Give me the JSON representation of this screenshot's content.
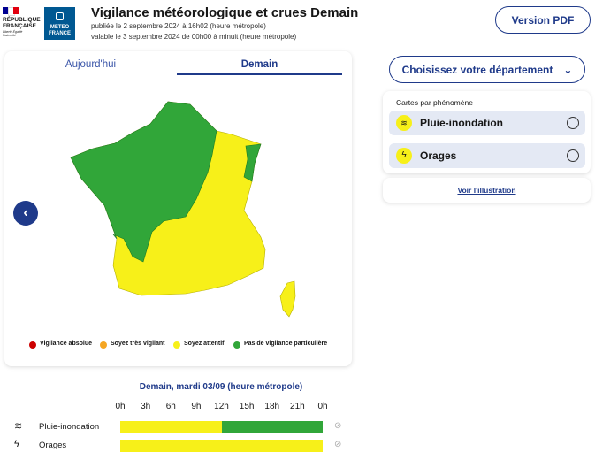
{
  "header": {
    "republique": "RÉPUBLIQUE FRANÇAISE",
    "devise": "Liberté Égalité Fraternité",
    "meteo": "METEO FRANCE",
    "title": "Vigilance météorologique et crues Demain",
    "published": "publiée le 2 septembre 2024 à 16h02 (heure métropole)",
    "valid": "valable le 3 septembre 2024 de 00h00 à minuit (heure métropole)",
    "pdf_button": "Version PDF"
  },
  "tabs": [
    "Aujourd'hui",
    "Demain"
  ],
  "legend": [
    {
      "label": "Vigilance absolue",
      "color": "#cc0000"
    },
    {
      "label": "Soyez très vigilant",
      "color": "#f5a623"
    },
    {
      "label": "Soyez attentif",
      "color": "#f7f019"
    },
    {
      "label": "Pas de vigilance particulière",
      "color": "#31a639"
    }
  ],
  "sidebar": {
    "department_button": "Choisissez votre département",
    "phenomena_title": "Cartes par phénomène",
    "phenomena": [
      "Pluie-inondation",
      "Orages"
    ],
    "illustration_link": "Voir l'illustration"
  },
  "timeline": {
    "title": "Demain, mardi 03/09 (heure métropole)",
    "hours": [
      "0h",
      "3h",
      "6h",
      "9h",
      "12h",
      "15h",
      "18h",
      "21h",
      "0h"
    ],
    "range": [
      0,
      24
    ],
    "rows": [
      {
        "label": "Pluie-inondation",
        "segments": [
          {
            "start": 0,
            "end": 12,
            "color": "#f7f019"
          },
          {
            "start": 12,
            "end": 24,
            "color": "#31a639"
          }
        ]
      },
      {
        "label": "Orages",
        "segments": [
          {
            "start": 0,
            "end": 24,
            "color": "#f7f019"
          }
        ]
      }
    ]
  }
}
